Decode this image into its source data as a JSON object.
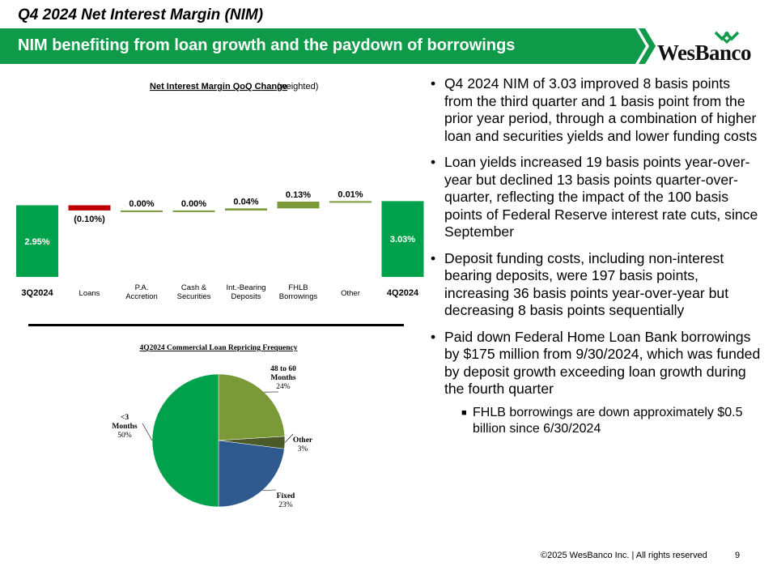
{
  "header": {
    "title": "Q4 2024 Net Interest Margin (NIM)",
    "banner": "NIM benefiting from loan growth and the paydown of borrowings",
    "logo_text": "WesBanco"
  },
  "colors": {
    "green": "#00A14B",
    "red": "#C00000",
    "olive": "#7A9A3A",
    "navy": "#2F5A8F",
    "dark_olive": "#4A5A28"
  },
  "chart_data": [
    {
      "type": "bar",
      "title": "Net Interest Margin QoQ Change",
      "title_suffix": "(weighted)",
      "categories": [
        "3Q2024",
        "Loans",
        "P.A. Accretion",
        "Cash & Securities",
        "Int.-Bearing Deposits",
        "FHLB Borrowings",
        "Other",
        "4Q2024"
      ],
      "category_lines": [
        [
          "3Q2024"
        ],
        [
          "Loans"
        ],
        [
          "P.A.",
          "Accretion"
        ],
        [
          "Cash &",
          "Securities"
        ],
        [
          "Int.-Bearing",
          "Deposits"
        ],
        [
          "FHLB",
          "Borrowings"
        ],
        [
          "Other"
        ],
        [
          "4Q2024"
        ]
      ],
      "values": [
        2.95,
        -0.1,
        0.0,
        0.0,
        0.04,
        0.13,
        0.01,
        3.03
      ],
      "kinds": [
        "total",
        "delta",
        "delta",
        "delta",
        "delta",
        "delta",
        "delta",
        "total"
      ],
      "data_labels": [
        "2.95%",
        "(0.10%)",
        "0.00%",
        "0.00%",
        "0.04%",
        "0.13%",
        "0.01%",
        "3.03%"
      ],
      "colors": [
        "#00A14B",
        "#C00000",
        "#7A9A3A",
        "#7A9A3A",
        "#7A9A3A",
        "#7A9A3A",
        "#7A9A3A",
        "#00A14B"
      ]
    },
    {
      "type": "pie",
      "title": "4Q2024 Commercial Loan Repricing Frequency",
      "slices": [
        {
          "label": "48 to 60 Months",
          "label_lines": [
            "48 to 60",
            "Months"
          ],
          "value": 24,
          "pct_label": "24%",
          "color": "#7A9A3A"
        },
        {
          "label": "Other",
          "label_lines": [
            "Other"
          ],
          "value": 3,
          "pct_label": "3%",
          "color": "#4A5A28"
        },
        {
          "label": "Fixed",
          "label_lines": [
            "Fixed"
          ],
          "value": 23,
          "pct_label": "23%",
          "color": "#2F5A8F"
        },
        {
          "label": "<3 Months",
          "label_lines": [
            "<3",
            "Months"
          ],
          "value": 50,
          "pct_label": "50%",
          "color": "#00A14B"
        }
      ]
    }
  ],
  "bullets": [
    "Q4 2024 NIM of 3.03 improved 8 basis points from the third quarter and 1 basis point from the prior year period, through a combination of higher loan and securities yields and lower funding costs",
    "Loan yields increased 19 basis points year-over-year but declined 13 basis points quarter-over-quarter, reflecting the impact of the 100 basis points of Federal Reserve interest rate cuts, since September",
    "Deposit funding costs, including non-interest bearing deposits, were 197 basis points, increasing 36 basis points year-over-year but decreasing 8 basis points sequentially",
    "Paid down Federal Home Loan Bank borrowings by $175 million from 9/30/2024, which was funded by deposit growth exceeding loan growth during the fourth quarter"
  ],
  "sub_bullets": [
    "FHLB borrowings are down approximately $0.5 billion since 6/30/2024"
  ],
  "footer": {
    "copyright": "©2025 WesBanco Inc.  |  All rights reserved",
    "page": "9"
  }
}
